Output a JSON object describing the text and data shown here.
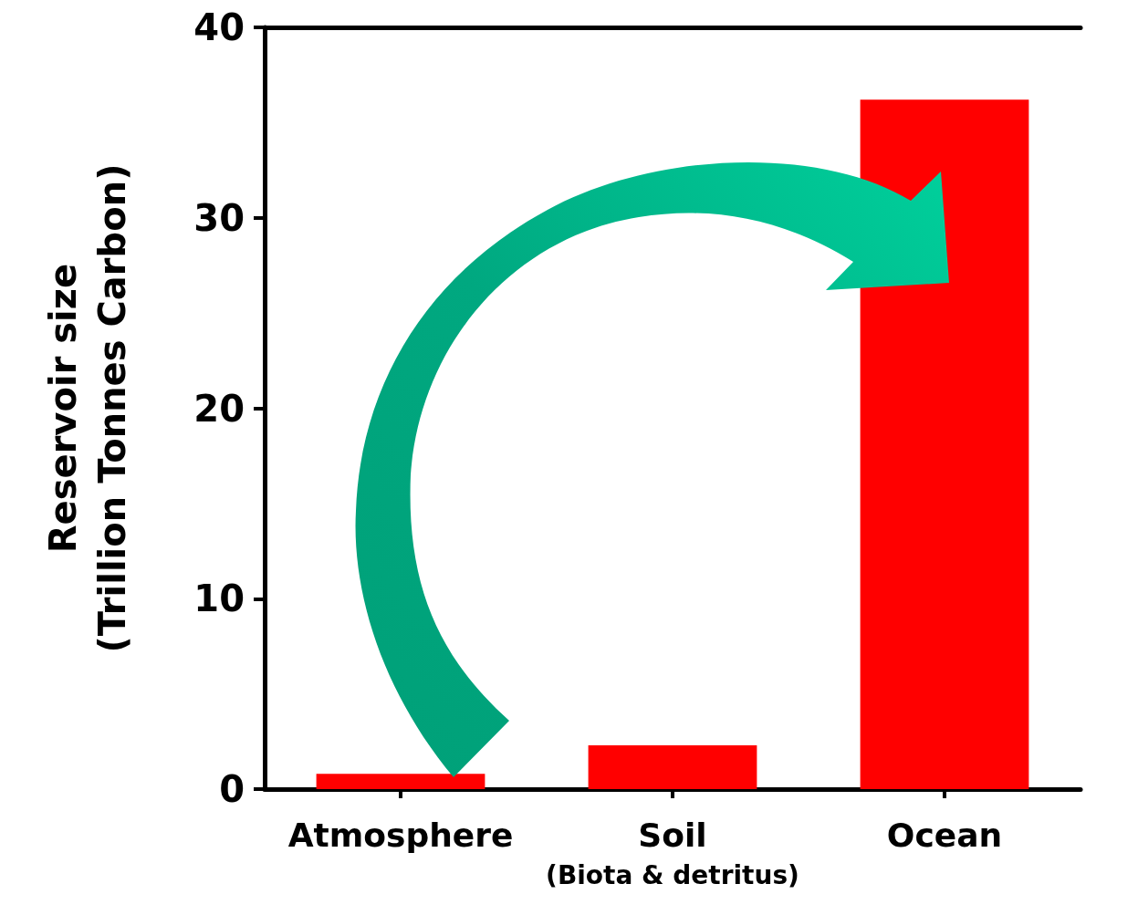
{
  "chart_data": {
    "type": "bar",
    "ylabel": "Reservoir size\n(Trillion Tonnes Carbon)",
    "categories": [
      "Atmosphere",
      "Soil\n(Biota & detritus)",
      "Ocean"
    ],
    "values": [
      0.8,
      2.3,
      36.2
    ],
    "color": "#ff0000",
    "ylim": [
      0,
      40
    ],
    "yticks": [
      0,
      10,
      20,
      30,
      40
    ],
    "grid": false
  }
}
